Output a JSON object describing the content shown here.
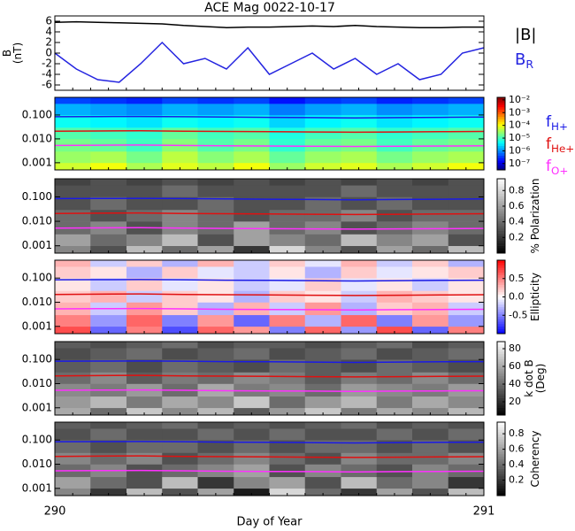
{
  "chart_data": [
    {
      "type": "line",
      "title": "ACE Mag 0022-10-17",
      "ylabel": [
        "B",
        "(nT)"
      ],
      "ylim": [
        -7,
        7
      ],
      "yticks": [
        6,
        4,
        2,
        0,
        -2,
        -4,
        -6
      ],
      "x": [
        290,
        290.05,
        290.1,
        290.15,
        290.2,
        290.25,
        290.3,
        290.35,
        290.4,
        290.45,
        290.5,
        290.55,
        290.6,
        290.65,
        290.7,
        290.75,
        290.8,
        290.85,
        290.9,
        290.95,
        291
      ],
      "series": [
        {
          "name": "|B|",
          "color": "#000000",
          "values": [
            5.8,
            5.9,
            5.8,
            5.7,
            5.6,
            5.5,
            5.2,
            5.0,
            4.8,
            4.9,
            4.9,
            5.0,
            5.1,
            5.0,
            5.2,
            5.0,
            4.9,
            4.8,
            4.8,
            4.9,
            4.9
          ]
        },
        {
          "name": "B",
          "subscript": "R",
          "color": "#2424e0",
          "values": [
            0,
            -3,
            -5,
            -5.5,
            -2,
            2,
            -2,
            -1,
            -3,
            1,
            -4,
            -2,
            0,
            -3,
            -1,
            -4,
            -2,
            -5,
            -4,
            0,
            1
          ]
        }
      ]
    },
    {
      "type": "heatmap",
      "colormap": "jet",
      "ylog": true,
      "ylim": [
        0.0005,
        0.55
      ],
      "yticks": [
        {
          "value": 0.1,
          "label": "0.100"
        },
        {
          "value": 0.01,
          "label": "0.010"
        },
        {
          "value": 0.001,
          "label": "0.001"
        }
      ],
      "clim": [
        -7.5,
        -1.8
      ],
      "cticks": [
        {
          "value": -2,
          "label": "10⁻²"
        },
        {
          "value": -3,
          "label": "10⁻³"
        },
        {
          "value": -4,
          "label": "10⁻⁴"
        },
        {
          "value": -5,
          "label": "10⁻⁵"
        },
        {
          "value": -6,
          "label": "10⁻⁶"
        },
        {
          "value": -7,
          "label": "10⁻⁷"
        }
      ],
      "time_bins": [
        290,
        290.083,
        290.167,
        290.25,
        290.333,
        290.417,
        290.5,
        290.583,
        290.667,
        290.75,
        290.833,
        290.917,
        291
      ],
      "freq_bins": [
        0.0005,
        0.001,
        0.003,
        0.01,
        0.03,
        0.1,
        0.3,
        0.55
      ],
      "values": [
        [
          -4.2,
          -4.0,
          -4.4,
          -4.1,
          -4.3,
          -4.0,
          -4.5,
          -4.2,
          -4.1,
          -4.4,
          -4.2,
          -4.0
        ],
        [
          -4.5,
          -4.4,
          -4.7,
          -4.3,
          -4.6,
          -4.4,
          -4.8,
          -4.5,
          -4.4,
          -4.7,
          -4.5,
          -4.4
        ],
        [
          -4.7,
          -4.8,
          -5.0,
          -4.6,
          -4.9,
          -4.7,
          -5.1,
          -4.8,
          -4.7,
          -5.0,
          -4.8,
          -4.7
        ],
        [
          -4.9,
          -5.0,
          -5.1,
          -4.8,
          -5.0,
          -4.9,
          -5.2,
          -5.0,
          -4.9,
          -5.1,
          -5.0,
          -4.9
        ],
        [
          -5.3,
          -5.4,
          -5.5,
          -5.3,
          -5.4,
          -5.3,
          -5.6,
          -5.4,
          -5.3,
          -5.5,
          -5.4,
          -5.3
        ],
        [
          -5.8,
          -5.9,
          -6.0,
          -5.8,
          -5.9,
          -5.8,
          -6.1,
          -5.9,
          -5.8,
          -6.0,
          -5.9,
          -5.8
        ],
        [
          -6.4,
          -6.5,
          -6.6,
          -6.4,
          -6.5,
          -6.4,
          -6.7,
          -6.5,
          -6.4,
          -6.6,
          -6.5,
          -6.4
        ]
      ],
      "x": [
        290,
        290.1,
        290.2,
        290.3,
        290.4,
        290.5,
        290.6,
        290.7,
        290.8,
        290.9,
        291
      ],
      "series": [
        {
          "name": "f",
          "subscript": "H+",
          "color": "#1a1ae6",
          "values": [
            0.085,
            0.086,
            0.087,
            0.085,
            0.082,
            0.08,
            0.078,
            0.076,
            0.078,
            0.08,
            0.082
          ]
        },
        {
          "name": "f",
          "subscript": "He+",
          "color": "#e01010",
          "values": [
            0.021,
            0.0215,
            0.022,
            0.021,
            0.0205,
            0.02,
            0.0195,
            0.019,
            0.0195,
            0.02,
            0.0205
          ]
        },
        {
          "name": "f",
          "subscript": "O+",
          "color": "#ff30ff",
          "values": [
            0.0053,
            0.0054,
            0.0055,
            0.0053,
            0.0051,
            0.005,
            0.0049,
            0.0048,
            0.0049,
            0.005,
            0.0051
          ]
        }
      ]
    },
    {
      "type": "heatmap",
      "colormap": "gray",
      "ylog": true,
      "ylim": [
        0.0005,
        0.55
      ],
      "yticks": [
        {
          "value": 0.1,
          "label": "0.100"
        },
        {
          "value": 0.01,
          "label": "0.010"
        },
        {
          "value": 0.001,
          "label": "0.001"
        }
      ],
      "clim": [
        0,
        0.95
      ],
      "cticks": [
        0.8,
        0.6,
        0.4,
        0.2
      ],
      "colorbar_label": [
        "% Polarization"
      ],
      "time_bins": [
        290,
        290.083,
        290.167,
        290.25,
        290.333,
        290.417,
        290.5,
        290.583,
        290.667,
        290.75,
        290.833,
        290.917,
        291
      ],
      "freq_bins": [
        0.0005,
        0.001,
        0.003,
        0.01,
        0.03,
        0.1,
        0.3,
        0.55
      ],
      "values": [
        [
          0.5,
          0.3,
          0.7,
          0.4,
          0.6,
          0.2,
          0.8,
          0.5,
          0.3,
          0.6,
          0.4,
          0.7
        ],
        [
          0.6,
          0.4,
          0.5,
          0.7,
          0.3,
          0.6,
          0.5,
          0.4,
          0.7,
          0.5,
          0.6,
          0.3
        ],
        [
          0.4,
          0.5,
          0.3,
          0.5,
          0.4,
          0.6,
          0.4,
          0.5,
          0.3,
          0.4,
          0.5,
          0.4
        ],
        [
          0.4,
          0.3,
          0.4,
          0.5,
          0.4,
          0.3,
          0.4,
          0.4,
          0.5,
          0.3,
          0.4,
          0.4
        ],
        [
          0.3,
          0.4,
          0.3,
          0.3,
          0.4,
          0.3,
          0.3,
          0.4,
          0.3,
          0.4,
          0.3,
          0.3
        ],
        [
          0.3,
          0.3,
          0.3,
          0.4,
          0.3,
          0.3,
          0.3,
          0.3,
          0.4,
          0.3,
          0.3,
          0.3
        ],
        [
          0.25,
          0.3,
          0.25,
          0.3,
          0.25,
          0.3,
          0.25,
          0.3,
          0.25,
          0.3,
          0.25,
          0.3
        ]
      ]
    },
    {
      "type": "heatmap",
      "colormap": "bwr",
      "ylog": true,
      "ylim": [
        0.0005,
        0.55
      ],
      "yticks": [
        {
          "value": 0.1,
          "label": "0.100"
        },
        {
          "value": 0.01,
          "label": "0.010"
        },
        {
          "value": 0.001,
          "label": "0.001"
        }
      ],
      "clim": [
        -1,
        1
      ],
      "cticks": [
        0.5,
        {
          "value": 0,
          "label": "0.0"
        },
        -0.5
      ],
      "colorbar_label": [
        "Ellipticity"
      ],
      "time_bins": [
        290,
        290.083,
        290.167,
        290.25,
        290.333,
        290.417,
        290.5,
        290.583,
        290.667,
        290.75,
        290.833,
        290.917,
        291
      ],
      "freq_bins": [
        0.0005,
        0.001,
        0.003,
        0.01,
        0.03,
        0.1,
        0.3,
        0.55
      ],
      "values": [
        [
          0.7,
          -0.6,
          0.5,
          -0.7,
          0.6,
          0.4,
          -0.5,
          0.6,
          -0.4,
          0.7,
          -0.6,
          0.5
        ],
        [
          0.5,
          -0.4,
          0.6,
          -0.5,
          0.4,
          -0.6,
          0.5,
          -0.3,
          0.6,
          -0.5,
          0.4,
          -0.4
        ],
        [
          0.3,
          -0.2,
          0.4,
          0.2,
          -0.3,
          0.3,
          -0.2,
          0.4,
          -0.3,
          0.2,
          0.3,
          -0.2
        ],
        [
          0.2,
          0.3,
          -0.2,
          0.2,
          0.1,
          -0.3,
          0.2,
          0.1,
          -0.2,
          0.3,
          0.2,
          0.1
        ],
        [
          0.1,
          -0.2,
          0.2,
          -0.1,
          0.1,
          -0.2,
          -0.1,
          0.2,
          -0.1,
          0.1,
          -0.2,
          0.1
        ],
        [
          0.2,
          0.1,
          -0.3,
          0.2,
          -0.1,
          -0.2,
          0.1,
          -0.3,
          0.2,
          -0.1,
          0.1,
          0.2
        ],
        [
          0.3,
          -0.2,
          0.2,
          -0.3,
          0.3,
          -0.2,
          0.2,
          -0.1,
          0.3,
          -0.2,
          0.2,
          -0.3
        ]
      ]
    },
    {
      "type": "heatmap",
      "colormap": "gray",
      "ylog": true,
      "ylim": [
        0.0005,
        0.55
      ],
      "yticks": [
        {
          "value": 0.1,
          "label": "0.100"
        },
        {
          "value": 0.01,
          "label": "0.010"
        },
        {
          "value": 0.001,
          "label": "0.001"
        }
      ],
      "clim": [
        5,
        88
      ],
      "cticks": [
        80,
        60,
        40,
        20
      ],
      "colorbar_label": [
        "k dot B",
        "(Deg)"
      ],
      "time_bins": [
        290,
        290.083,
        290.167,
        290.25,
        290.333,
        290.417,
        290.5,
        290.583,
        290.667,
        290.75,
        290.833,
        290.917,
        291
      ],
      "freq_bins": [
        0.0005,
        0.001,
        0.003,
        0.01,
        0.03,
        0.1,
        0.3,
        0.55
      ],
      "values": [
        [
          60,
          40,
          70,
          50,
          65,
          35,
          55,
          70,
          45,
          60,
          50,
          65
        ],
        [
          55,
          65,
          45,
          60,
          50,
          70,
          40,
          55,
          65,
          45,
          60,
          50
        ],
        [
          50,
          45,
          55,
          40,
          60,
          45,
          50,
          40,
          55,
          50,
          45,
          55
        ],
        [
          40,
          50,
          35,
          45,
          40,
          50,
          45,
          35,
          45,
          40,
          50,
          40
        ],
        [
          35,
          40,
          30,
          40,
          35,
          30,
          40,
          35,
          30,
          40,
          35,
          30
        ],
        [
          30,
          35,
          40,
          30,
          35,
          40,
          30,
          35,
          40,
          30,
          35,
          40
        ],
        [
          35,
          30,
          35,
          40,
          30,
          35,
          35,
          30,
          35,
          40,
          30,
          35
        ]
      ]
    },
    {
      "type": "heatmap",
      "colormap": "gray",
      "ylog": true,
      "ylim": [
        0.0005,
        0.55
      ],
      "yticks": [
        {
          "value": 0.1,
          "label": "0.100"
        },
        {
          "value": 0.01,
          "label": "0.010"
        },
        {
          "value": 0.001,
          "label": "0.001"
        }
      ],
      "clim": [
        0,
        0.95
      ],
      "cticks": [
        0.8,
        0.6,
        0.4,
        0.2
      ],
      "colorbar_label": [
        "Coherency"
      ],
      "xlim": [
        290,
        291
      ],
      "xticks": [
        290,
        291
      ],
      "xlabel": "Day of Year",
      "time_bins": [
        290,
        290.083,
        290.167,
        290.25,
        290.333,
        290.417,
        290.5,
        290.583,
        290.667,
        290.75,
        290.833,
        290.917,
        291
      ],
      "freq_bins": [
        0.0005,
        0.001,
        0.003,
        0.01,
        0.03,
        0.1,
        0.3,
        0.55
      ],
      "values": [
        [
          0.5,
          0.2,
          0.7,
          0.3,
          0.6,
          0.1,
          0.8,
          0.4,
          0.2,
          0.6,
          0.3,
          0.7
        ],
        [
          0.6,
          0.4,
          0.3,
          0.7,
          0.2,
          0.5,
          0.6,
          0.3,
          0.7,
          0.4,
          0.5,
          0.2
        ],
        [
          0.4,
          0.5,
          0.3,
          0.4,
          0.5,
          0.6,
          0.3,
          0.5,
          0.4,
          0.3,
          0.5,
          0.4
        ],
        [
          0.5,
          0.4,
          0.5,
          0.3,
          0.4,
          0.5,
          0.4,
          0.3,
          0.5,
          0.4,
          0.4,
          0.5
        ],
        [
          0.4,
          0.3,
          0.4,
          0.4,
          0.3,
          0.4,
          0.3,
          0.4,
          0.4,
          0.3,
          0.4,
          0.3
        ],
        [
          0.3,
          0.4,
          0.3,
          0.3,
          0.4,
          0.3,
          0.4,
          0.3,
          0.3,
          0.4,
          0.3,
          0.4
        ],
        [
          0.35,
          0.3,
          0.35,
          0.4,
          0.3,
          0.35,
          0.3,
          0.35,
          0.4,
          0.3,
          0.35,
          0.3
        ]
      ]
    }
  ]
}
